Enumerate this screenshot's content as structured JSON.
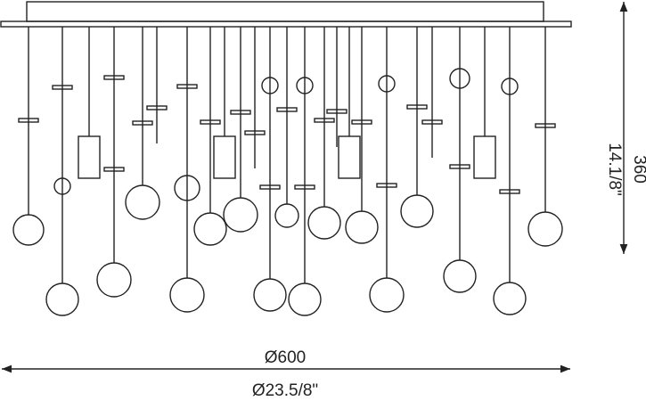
{
  "dimensions": {
    "width_mm": "Ø600",
    "width_in": "Ø23.5/8\"",
    "height_mm": "360",
    "height_in": "14.1/8\""
  }
}
